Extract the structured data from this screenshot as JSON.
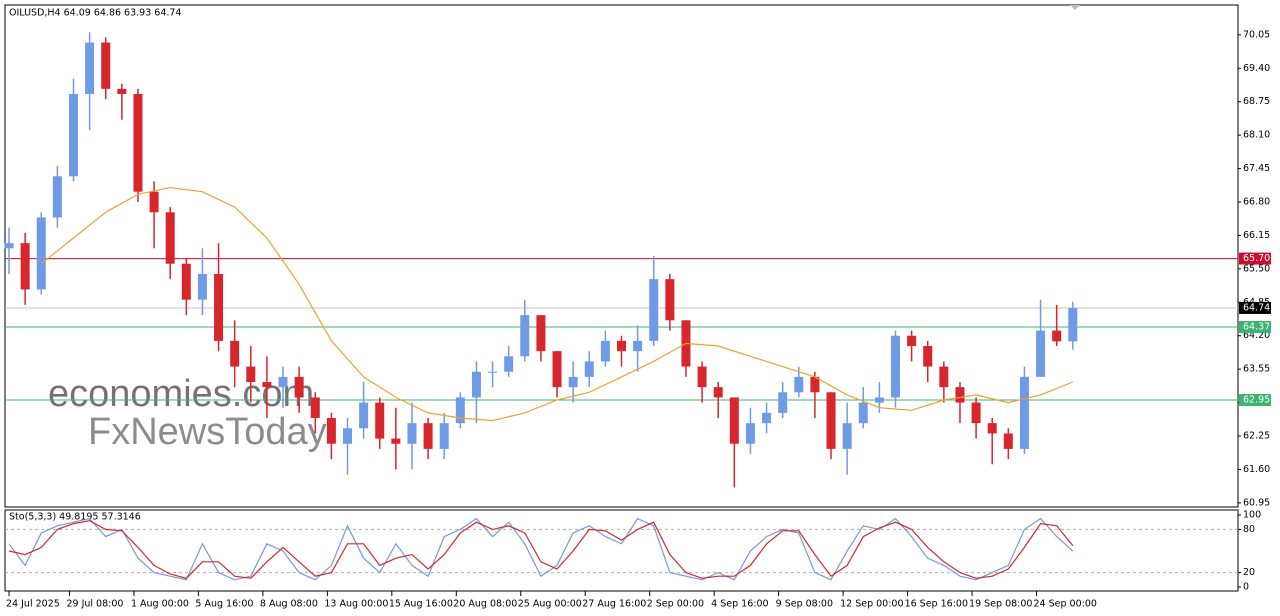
{
  "chart_data": [
    {
      "type": "candlestick",
      "title": "OILUSD,H4  64.09 64.86 63.93 64.74",
      "watermark": [
        "economies.com",
        "FxNewsToday"
      ],
      "up_color": "#6f9be6",
      "down_color": "#d7262c",
      "xlim": [
        -1,
        305
      ],
      "ylim": [
        60.87,
        70.63
      ],
      "yticks": [
        {
          "value": 70.05,
          "label": "70.05"
        },
        {
          "value": 69.4,
          "label": "69.40"
        },
        {
          "value": 68.75,
          "label": "68.75"
        },
        {
          "value": 68.1,
          "label": "68.10"
        },
        {
          "value": 67.45,
          "label": "67.45"
        },
        {
          "value": 66.8,
          "label": "66.80"
        },
        {
          "value": 66.15,
          "label": "66.15"
        },
        {
          "value": 65.5,
          "label": "65.50"
        },
        {
          "value": 64.85,
          "label": "64.85"
        },
        {
          "value": 64.2,
          "label": "64.20"
        },
        {
          "value": 63.55,
          "label": "63.55"
        },
        {
          "value": 62.9,
          "label": "62.90"
        },
        {
          "value": 62.25,
          "label": "62.25"
        },
        {
          "value": 61.6,
          "label": "61.60"
        },
        {
          "value": 60.95,
          "label": "60.95"
        }
      ],
      "levels": [
        {
          "value": 65.7,
          "label": "65.70",
          "color": "#c8102e",
          "box": "#c8102e"
        },
        {
          "value": 64.74,
          "label": "64.74",
          "color": "#c4c4c4",
          "box": "#000000"
        },
        {
          "value": 64.37,
          "label": "64.37",
          "color": "#3cb371",
          "box": "#3cb371"
        },
        {
          "value": 62.95,
          "label": "62.95",
          "color": "#3cb371",
          "box": "#3cb371"
        }
      ],
      "x": [
        0,
        4,
        8,
        12,
        16,
        20,
        24,
        28,
        32,
        36,
        40,
        44,
        48,
        52,
        56,
        60,
        64,
        68,
        72,
        76,
        80,
        84,
        88,
        92,
        96,
        100,
        104,
        108,
        112,
        116,
        120,
        124,
        128,
        132,
        136,
        140,
        144,
        148,
        152,
        156,
        160,
        164,
        168,
        172,
        176,
        180,
        184,
        188,
        192,
        196,
        200,
        204,
        208,
        212,
        216,
        220,
        224,
        228,
        232,
        236,
        240,
        244,
        248,
        252,
        256,
        260,
        264
      ],
      "open": [
        65.9,
        66.0,
        65.1,
        66.5,
        67.3,
        68.9,
        69.9,
        69.0,
        68.9,
        67.0,
        66.6,
        65.6,
        64.9,
        65.4,
        64.1,
        63.6,
        63.3,
        63.2,
        63.4,
        63.0,
        62.6,
        62.1,
        62.4,
        62.9,
        62.2,
        62.1,
        62.5,
        62.0,
        62.5,
        63.0,
        63.5,
        63.5,
        63.8,
        64.6,
        63.9,
        63.2,
        63.4,
        63.7,
        64.1,
        63.9,
        64.1,
        65.3,
        64.5,
        63.6,
        63.2,
        63.0,
        62.1,
        62.5,
        62.7,
        63.1,
        63.4,
        63.1,
        62.0,
        62.5,
        62.9,
        63.0,
        64.2,
        64.0,
        63.6,
        63.2,
        62.9,
        62.5,
        62.3,
        62.0,
        63.4,
        64.3,
        64.09
      ],
      "high": [
        66.3,
        66.2,
        66.6,
        67.5,
        69.2,
        70.1,
        70.0,
        69.1,
        69.0,
        67.2,
        66.7,
        65.7,
        65.9,
        66.0,
        64.5,
        64.0,
        63.8,
        63.6,
        63.6,
        63.1,
        62.7,
        62.6,
        63.3,
        63.0,
        62.8,
        62.9,
        62.6,
        62.7,
        63.1,
        63.7,
        63.7,
        64.0,
        64.9,
        64.6,
        63.9,
        63.7,
        63.9,
        64.3,
        64.2,
        64.4,
        65.75,
        65.4,
        64.5,
        63.7,
        63.3,
        63.0,
        62.8,
        62.9,
        63.3,
        63.6,
        63.5,
        63.1,
        62.9,
        63.2,
        63.3,
        64.3,
        64.3,
        64.1,
        63.7,
        63.3,
        63.0,
        62.6,
        62.4,
        63.6,
        64.9,
        64.8,
        64.86
      ],
      "low": [
        65.4,
        64.8,
        65.0,
        66.3,
        67.2,
        68.2,
        68.8,
        68.4,
        66.8,
        65.9,
        65.3,
        64.6,
        64.6,
        63.9,
        63.2,
        62.9,
        62.6,
        62.8,
        62.7,
        62.3,
        61.8,
        61.5,
        62.2,
        62.0,
        61.6,
        61.6,
        61.8,
        61.8,
        62.4,
        62.5,
        63.2,
        63.4,
        63.7,
        63.7,
        63.0,
        62.9,
        63.2,
        63.6,
        63.6,
        63.5,
        64.0,
        64.3,
        63.4,
        62.9,
        62.6,
        61.25,
        61.9,
        62.3,
        62.6,
        63.0,
        62.6,
        61.8,
        61.5,
        62.4,
        62.7,
        62.8,
        63.7,
        63.3,
        62.9,
        62.5,
        62.2,
        61.7,
        61.8,
        61.9,
        63.4,
        64.0,
        63.93
      ],
      "close": [
        66.0,
        65.1,
        66.5,
        67.3,
        68.9,
        69.9,
        69.0,
        68.9,
        67.0,
        66.6,
        65.6,
        64.9,
        65.4,
        64.1,
        63.6,
        63.3,
        63.2,
        63.4,
        63.0,
        62.6,
        62.1,
        62.4,
        62.9,
        62.2,
        62.1,
        62.5,
        62.0,
        62.5,
        63.0,
        63.5,
        63.5,
        63.8,
        64.6,
        63.9,
        63.2,
        63.4,
        63.7,
        64.1,
        63.9,
        64.1,
        65.3,
        64.5,
        63.6,
        63.2,
        63.0,
        62.1,
        62.5,
        62.7,
        63.1,
        63.4,
        63.1,
        62.0,
        62.5,
        62.9,
        63.0,
        64.2,
        64.0,
        63.6,
        63.2,
        62.9,
        62.5,
        62.3,
        62.0,
        63.4,
        64.3,
        64.09,
        64.74
      ],
      "series": [
        {
          "color": "#f0a030",
          "x": [
            8,
            16,
            24,
            32,
            40,
            48,
            56,
            64,
            72,
            80,
            88,
            96,
            104,
            112,
            120,
            128,
            136,
            144,
            152,
            160,
            168,
            176,
            184,
            192,
            200,
            208,
            216,
            224,
            232,
            240,
            248,
            256,
            264
          ],
          "values": [
            65.6,
            66.1,
            66.6,
            66.95,
            67.08,
            67.0,
            66.7,
            66.1,
            65.2,
            64.1,
            63.4,
            63.0,
            62.7,
            62.6,
            62.55,
            62.7,
            62.95,
            63.1,
            63.4,
            63.7,
            64.05,
            64.0,
            63.8,
            63.6,
            63.4,
            63.05,
            62.8,
            62.75,
            62.95,
            63.05,
            62.9,
            63.05,
            63.3
          ]
        }
      ]
    },
    {
      "type": "line",
      "title": "Sto(5,3,3) 49.8195 57.3146",
      "xlim": [
        -1,
        305
      ],
      "ylim": [
        -5.6,
        106.9
      ],
      "yticks": [
        0,
        20,
        80,
        100
      ],
      "levels": [
        20,
        80
      ],
      "xticks": [
        {
          "value": 0,
          "label": "24 Jul 2025"
        },
        {
          "value": 15,
          "label": "29 Jul 08:00"
        },
        {
          "value": 31,
          "label": "1 Aug 00:00"
        },
        {
          "value": 47,
          "label": "5 Aug 16:00"
        },
        {
          "value": 63,
          "label": "8 Aug 08:00"
        },
        {
          "value": 79,
          "label": "13 Aug 00:00"
        },
        {
          "value": 95,
          "label": "15 Aug 16:00"
        },
        {
          "value": 111,
          "label": "20 Aug 08:00"
        },
        {
          "value": 127,
          "label": "25 Aug 00:00"
        },
        {
          "value": 143,
          "label": "27 Aug 16:00"
        },
        {
          "value": 159,
          "label": "2 Sep 00:00"
        },
        {
          "value": 175,
          "label": "4 Sep 16:00"
        },
        {
          "value": 191,
          "label": "9 Sep 08:00"
        },
        {
          "value": 207,
          "label": "12 Sep 00:00"
        },
        {
          "value": 223,
          "label": "16 Sep 16:00"
        },
        {
          "value": 239,
          "label": "19 Sep 08:00"
        },
        {
          "value": 255,
          "label": "24 Sep 00:00"
        }
      ],
      "x": [
        0,
        4,
        8,
        12,
        16,
        20,
        24,
        28,
        32,
        36,
        40,
        44,
        48,
        52,
        56,
        60,
        64,
        68,
        72,
        76,
        80,
        84,
        88,
        92,
        96,
        100,
        104,
        108,
        112,
        116,
        120,
        124,
        128,
        132,
        136,
        140,
        144,
        148,
        152,
        156,
        160,
        164,
        168,
        172,
        176,
        180,
        184,
        188,
        192,
        196,
        200,
        204,
        208,
        212,
        216,
        220,
        224,
        228,
        232,
        236,
        240,
        244,
        248,
        252,
        256,
        260,
        264
      ],
      "series": [
        {
          "color": "#6f9be6",
          "values": [
            60,
            30,
            75,
            85,
            90,
            95,
            70,
            80,
            40,
            20,
            15,
            10,
            60,
            20,
            10,
            15,
            60,
            50,
            20,
            10,
            30,
            85,
            40,
            20,
            60,
            30,
            15,
            70,
            80,
            95,
            70,
            90,
            60,
            15,
            30,
            75,
            85,
            70,
            60,
            95,
            85,
            20,
            15,
            10,
            20,
            10,
            50,
            70,
            80,
            75,
            20,
            10,
            50,
            85,
            80,
            95,
            70,
            40,
            30,
            15,
            10,
            20,
            30,
            80,
            95,
            70,
            49.8195
          ]
        },
        {
          "color": "#d7262c",
          "values": [
            50,
            45,
            55,
            80,
            88,
            92,
            80,
            78,
            55,
            30,
            18,
            12,
            35,
            35,
            15,
            12,
            35,
            55,
            35,
            15,
            20,
            60,
            60,
            30,
            40,
            45,
            25,
            45,
            75,
            90,
            80,
            85,
            75,
            35,
            25,
            50,
            80,
            78,
            65,
            80,
            90,
            45,
            20,
            12,
            15,
            15,
            30,
            60,
            78,
            78,
            45,
            15,
            30,
            70,
            82,
            90,
            80,
            55,
            35,
            20,
            12,
            15,
            25,
            55,
            88,
            85,
            57.3146
          ]
        }
      ]
    }
  ]
}
